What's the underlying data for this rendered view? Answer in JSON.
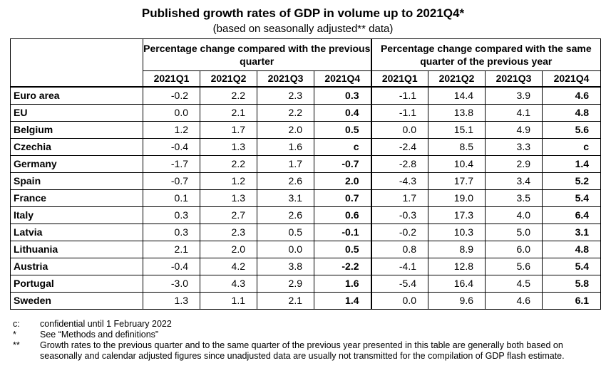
{
  "title": "Published growth rates of GDP in volume up to 2021Q4*",
  "subtitle": "(based on seasonally adjusted** data)",
  "table": {
    "group_headers": [
      "Percentage change compared with the previous quarter",
      "Percentage change compared with the same quarter of the previous year"
    ],
    "quarters": [
      "2021Q1",
      "2021Q2",
      "2021Q3",
      "2021Q4",
      "2021Q1",
      "2021Q2",
      "2021Q3",
      "2021Q4"
    ],
    "rows": [
      {
        "country": "Euro area",
        "values": [
          "-0.2",
          "2.2",
          "2.3",
          "0.3",
          "-1.1",
          "14.4",
          "3.9",
          "4.6"
        ]
      },
      {
        "country": "EU",
        "values": [
          "0.0",
          "2.1",
          "2.2",
          "0.4",
          "-1.1",
          "13.8",
          "4.1",
          "4.8"
        ]
      },
      {
        "country": "Belgium",
        "values": [
          "1.2",
          "1.7",
          "2.0",
          "0.5",
          "0.0",
          "15.1",
          "4.9",
          "5.6"
        ]
      },
      {
        "country": "Czechia",
        "values": [
          "-0.4",
          "1.3",
          "1.6",
          "c",
          "-2.4",
          "8.5",
          "3.3",
          "c"
        ]
      },
      {
        "country": "Germany",
        "values": [
          "-1.7",
          "2.2",
          "1.7",
          "-0.7",
          "-2.8",
          "10.4",
          "2.9",
          "1.4"
        ]
      },
      {
        "country": "Spain",
        "values": [
          "-0.7",
          "1.2",
          "2.6",
          "2.0",
          "-4.3",
          "17.7",
          "3.4",
          "5.2"
        ]
      },
      {
        "country": "France",
        "values": [
          "0.1",
          "1.3",
          "3.1",
          "0.7",
          "1.7",
          "19.0",
          "3.5",
          "5.4"
        ]
      },
      {
        "country": "Italy",
        "values": [
          "0.3",
          "2.7",
          "2.6",
          "0.6",
          "-0.3",
          "17.3",
          "4.0",
          "6.4"
        ]
      },
      {
        "country": "Latvia",
        "values": [
          "0.3",
          "2.3",
          "0.5",
          "-0.1",
          "-0.2",
          "10.3",
          "5.0",
          "3.1"
        ]
      },
      {
        "country": "Lithuania",
        "values": [
          "2.1",
          "2.0",
          "0.0",
          "0.5",
          "0.8",
          "8.9",
          "6.0",
          "4.8"
        ]
      },
      {
        "country": "Austria",
        "values": [
          "-0.4",
          "4.2",
          "3.8",
          "-2.2",
          "-4.1",
          "12.8",
          "5.6",
          "5.4"
        ]
      },
      {
        "country": "Portugal",
        "values": [
          "-3.0",
          "4.3",
          "2.9",
          "1.6",
          "-5.4",
          "16.4",
          "4.5",
          "5.8"
        ]
      },
      {
        "country": "Sweden",
        "values": [
          "1.3",
          "1.1",
          "2.1",
          "1.4",
          "0.0",
          "9.6",
          "4.6",
          "6.1"
        ]
      }
    ]
  },
  "notes": [
    {
      "mark": "c:",
      "text": "confidential until 1 February 2022"
    },
    {
      "mark": "*",
      "text": "See “Methods and definitions”"
    },
    {
      "mark": "**",
      "text": "Growth rates to the previous quarter and to the same quarter of the previous year presented in this table are generally both based on seasonally and calendar adjusted figures since unadjusted data are usually not transmitted for the compilation of GDP flash estimate."
    }
  ]
}
